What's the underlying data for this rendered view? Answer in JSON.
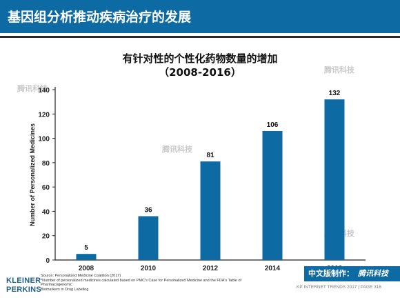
{
  "header": {
    "title": "基因组分析推动疾病治疗的发展"
  },
  "chart_data": {
    "type": "bar",
    "title": "有针对性的个性化药物数量的增加",
    "subtitle": "（2008-2016）",
    "categories": [
      "2008",
      "2010",
      "2012",
      "2014",
      "2016"
    ],
    "values": [
      5,
      36,
      81,
      106,
      132
    ],
    "value_labels": [
      "5",
      "36",
      "81",
      "106",
      "132"
    ],
    "ylabel": "Number of Personalized Medicines",
    "xlabel": "",
    "ylim": [
      0,
      140
    ],
    "yticks": [
      "0",
      "20",
      "40",
      "60",
      "80",
      "100",
      "120",
      "140"
    ],
    "grid": false,
    "legend": "none",
    "bar_color": "#0e6aa3"
  },
  "source": {
    "line1": "Source: Personalized Medicine Coalition (2017)",
    "line2": "*Number of personalized medicines calculated based on PMC's Case for Personalized Medicine and the FDA's Table of Pharmacogenomic",
    "line3": "Biomarkers in Drug Labeling"
  },
  "logo": {
    "line1": "KLEINER",
    "line2": "PERKINS"
  },
  "badge": {
    "prefix": "中文版制作：",
    "brand": "腾讯科技"
  },
  "footer": {
    "text": "KP INTERNET TRENDS 2017  |  PAGE 316"
  },
  "watermark": {
    "text": "腾讯科技"
  },
  "colors": {
    "accent": "#0e6aa3",
    "header_bg": "#0e6aa3"
  }
}
